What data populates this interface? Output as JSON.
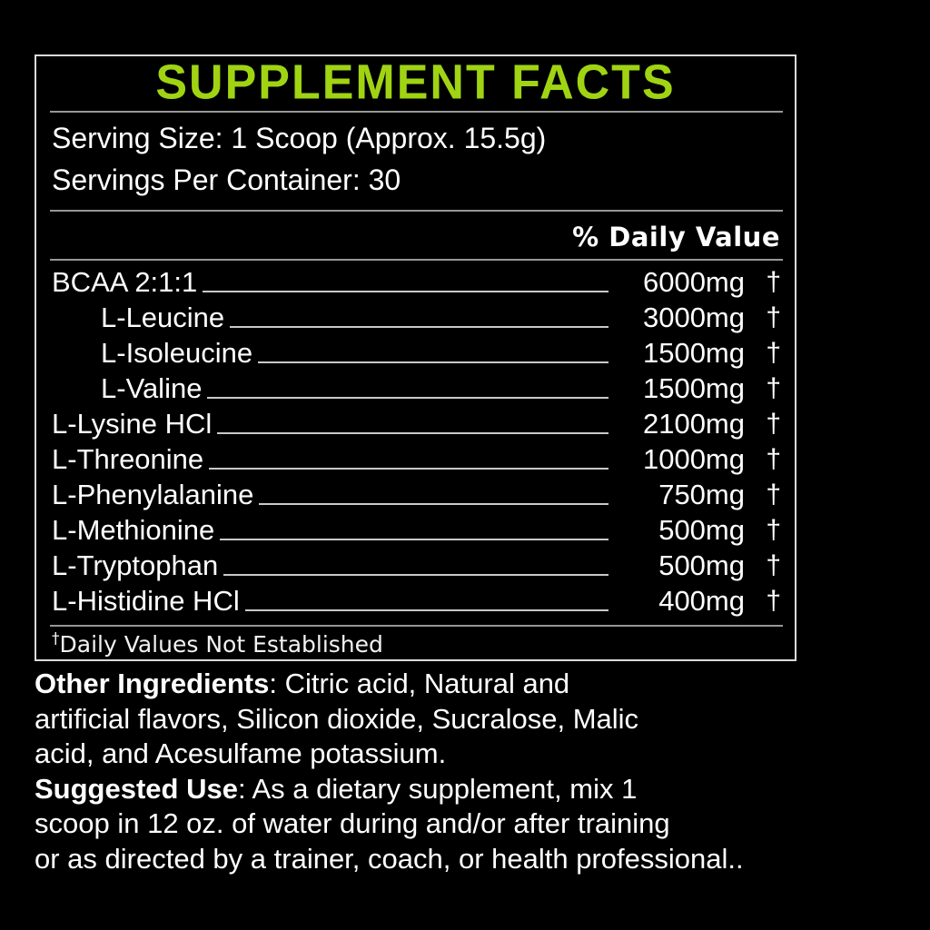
{
  "colors": {
    "accent_green": "#A0D413",
    "panel_border": "#DBDBDB",
    "divider": "#979797",
    "leader_line": "#C9C9C9",
    "text": "#FFFFFF"
  },
  "panel": {
    "title": "SUPPLEMENT FACTS",
    "serving_size": "Serving Size: 1 Scoop (Approx. 15.5g)",
    "servings_per_container": "Servings Per Container: 30",
    "daily_value_header": "% Daily Value",
    "rows": [
      {
        "name": "BCAA 2:1:1",
        "amount": "6000mg",
        "dv": "†",
        "indent": false
      },
      {
        "name": "L-Leucine",
        "amount": "3000mg",
        "dv": "†",
        "indent": true
      },
      {
        "name": "L-Isoleucine",
        "amount": "1500mg",
        "dv": "†",
        "indent": true
      },
      {
        "name": "L-Valine",
        "amount": "1500mg",
        "dv": "†",
        "indent": true
      },
      {
        "name": "L-Lysine HCl",
        "amount": "2100mg",
        "dv": "†",
        "indent": false
      },
      {
        "name": "L-Threonine",
        "amount": "1000mg",
        "dv": "†",
        "indent": false
      },
      {
        "name": "L-Phenylalanine",
        "amount": "750mg",
        "dv": "†",
        "indent": false
      },
      {
        "name": "L-Methionine",
        "amount": "500mg",
        "dv": "†",
        "indent": false
      },
      {
        "name": "L-Tryptophan",
        "amount": "500mg",
        "dv": "†",
        "indent": false
      },
      {
        "name": "L-Histidine HCl",
        "amount": "400mg",
        "dv": "†",
        "indent": false
      }
    ],
    "footnote": {
      "dagger": "†",
      "text": "Daily Values Not Established"
    }
  },
  "other_ingredients": {
    "label": "Other Ingredients",
    "first_line_rest": ": Citric acid, Natural and",
    "lines": [
      "artificial flavors, Silicon dioxide, Sucralose, Malic",
      "acid, and Acesulfame potassium."
    ]
  },
  "suggested_use": {
    "label": "Suggested Use",
    "first_line_rest": ": As a dietary supplement, mix 1",
    "lines": [
      "scoop in 12 oz. of water during and/or after training",
      "or as directed by a trainer, coach, or health professional.."
    ]
  }
}
